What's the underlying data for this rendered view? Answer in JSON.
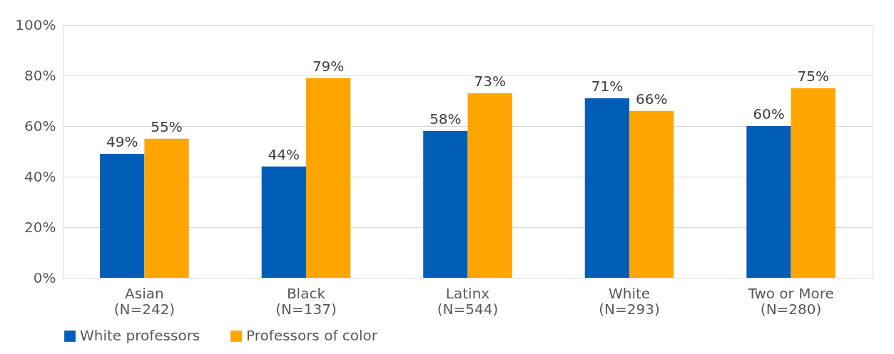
{
  "chart_data": {
    "type": "bar",
    "categories": [
      "Asian\n(N=242)",
      "Black\n(N=137)",
      "Latinx\n(N=544)",
      "White\n(N=293)",
      "Two or More\n(N=280)"
    ],
    "series": [
      {
        "name": "White professors",
        "color": "#005eb8",
        "values": [
          49,
          44,
          58,
          71,
          60
        ],
        "value_labels": [
          "49%",
          "44%",
          "58%",
          "71%",
          "60%"
        ]
      },
      {
        "name": "Professors of color",
        "color": "#ffa500",
        "values": [
          55,
          79,
          73,
          66,
          75
        ],
        "value_labels": [
          "55%",
          "79%",
          "73%",
          "66%",
          "75%"
        ]
      }
    ],
    "ylim": [
      0,
      100
    ],
    "yticks": [
      {
        "value": 0,
        "label": "0%"
      },
      {
        "value": 20,
        "label": "20%"
      },
      {
        "value": 40,
        "label": "40%"
      },
      {
        "value": 60,
        "label": "60%"
      },
      {
        "value": 80,
        "label": "80%"
      },
      {
        "value": 100,
        "label": "100%"
      }
    ],
    "grid": "y",
    "legend": "bottom"
  }
}
